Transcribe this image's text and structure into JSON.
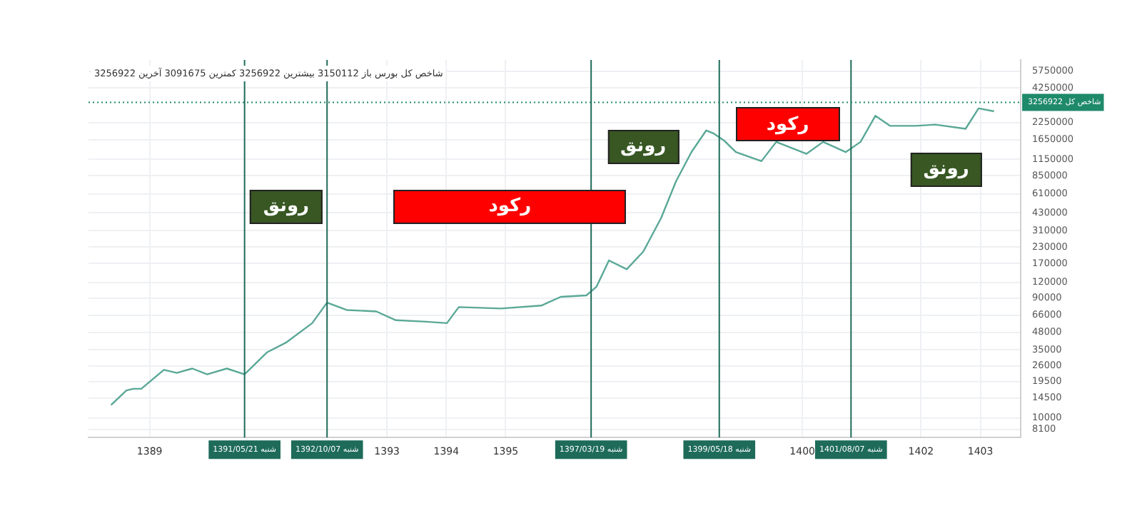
{
  "chart_data": {
    "type": "line",
    "subtitle": "شاخص کل بورس باز 3150112 بیشترین 3256922 کمترین 3091675 آخرین 3256922",
    "x": [
      1388.35,
      1388.61,
      1388.73,
      1388.86,
      1389.24,
      1389.46,
      1389.72,
      1389.97,
      1390.3,
      1390.6,
      1390.98,
      1391.31,
      1391.74,
      1391.99,
      1392.32,
      1392.82,
      1393.15,
      1393.66,
      1394.01,
      1394.21,
      1394.92,
      1395.6,
      1395.93,
      1396.36,
      1396.53,
      1396.74,
      1397.04,
      1397.32,
      1397.62,
      1397.87,
      1398.13,
      1398.38,
      1398.5,
      1398.68,
      1398.88,
      1399.31,
      1399.56,
      1400.07,
      1400.35,
      1400.73,
      1400.98,
      1401.23,
      1401.48,
      1401.91,
      1402.24,
      1402.75,
      1402.97,
      1403.23
    ],
    "series": [
      {
        "color": "#5aa897",
        "values": [
          12700,
          16600,
          17100,
          17100,
          24200,
          22900,
          24800,
          22300,
          24800,
          22300,
          33400,
          40200,
          57000,
          83000,
          72500,
          70600,
          60100,
          58500,
          57000,
          76500,
          74500,
          78600,
          92300,
          94800,
          111000,
          180000,
          153000,
          212000,
          392000,
          766000,
          1310000,
          1950000,
          1850000,
          1620000,
          1310000,
          1110000,
          1580000,
          1270000,
          1580000,
          1310000,
          1580000,
          2550000,
          2120000,
          2120000,
          2170000,
          2010000,
          2920000,
          2770000
        ]
      }
    ],
    "xlim": [
      1387.97,
      1403.68
    ],
    "xticks": [
      1389,
      1393,
      1394,
      1395,
      1400,
      1402,
      1403
    ],
    "ylim": [
      7000,
      7100000
    ],
    "log": true,
    "grid": true,
    "yticks": [
      8100,
      10000,
      14500,
      19500,
      26000,
      35000,
      48000,
      66000,
      90000,
      120000,
      170000,
      230000,
      310000,
      430000,
      610000,
      850000,
      1150000,
      1650000,
      2250000,
      4250000,
      5750000
    ],
    "ref_lines": [
      {
        "axis": "x",
        "value": 1390.6,
        "label": "شنبه 1391/05/21",
        "color": "#1e6b5a"
      },
      {
        "axis": "x",
        "value": 1391.99,
        "label": "شنبه 1392/10/07",
        "color": "#1e6b5a"
      },
      {
        "axis": "x",
        "value": 1396.44,
        "label": "شنبه 1397/03/19",
        "color": "#1e6b5a"
      },
      {
        "axis": "x",
        "value": 1398.6,
        "label": "شنبه 1399/05/18",
        "color": "#1e6b5a"
      },
      {
        "axis": "x",
        "value": 1400.82,
        "label": "شنبه 1401/08/07",
        "color": "#1e6b5a"
      },
      {
        "axis": "y",
        "value": 3256922,
        "label": "شاخص کل 3256922",
        "color": "#1e8a6a",
        "line_style": "dotted"
      }
    ],
    "annotations": [
      "رونق",
      "رکود",
      "رونق",
      "رکود",
      "رونق"
    ]
  }
}
